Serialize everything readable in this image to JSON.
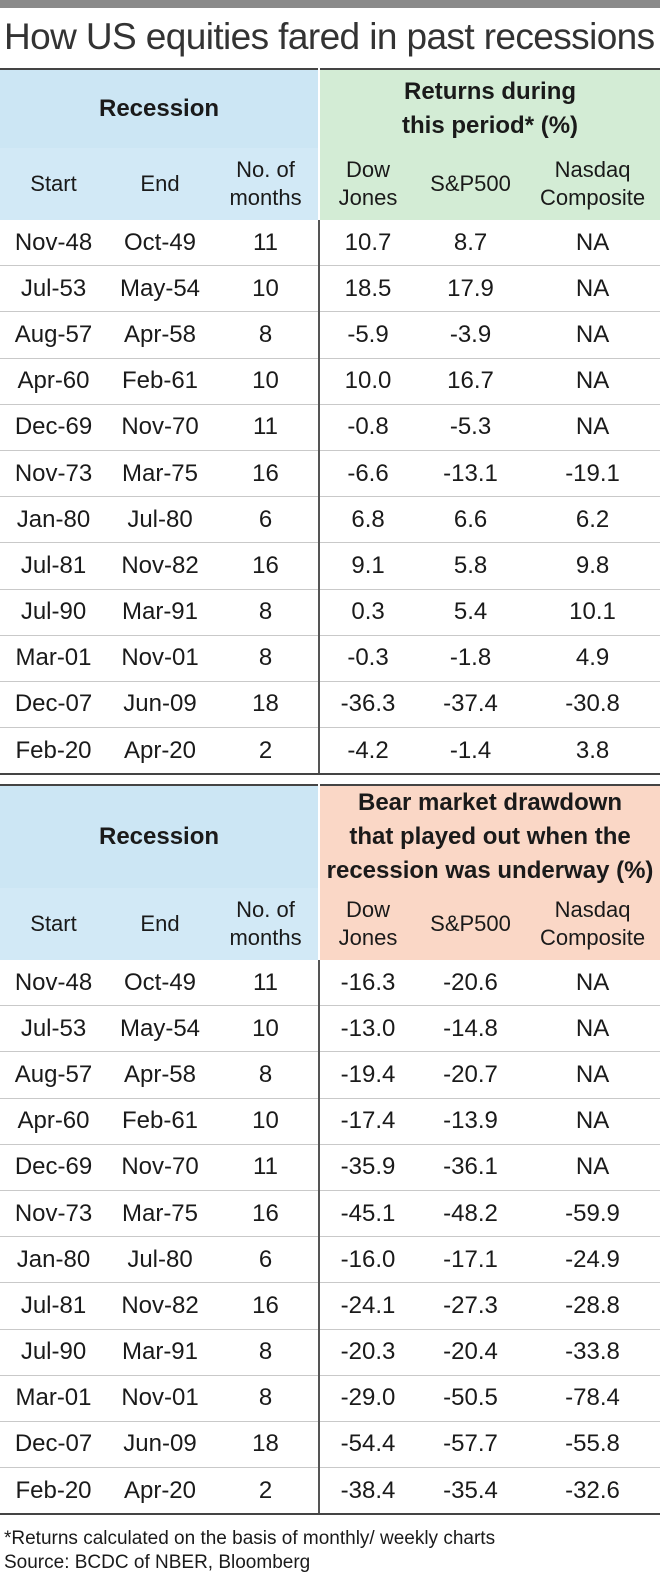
{
  "title": "How US equities fared in past recessions",
  "chart_data": [
    {
      "type": "table",
      "group_headers": [
        "Recession",
        "Returns during this period* (%)"
      ],
      "group_header_lines": [
        [
          "Recession"
        ],
        [
          "Returns during",
          "this period* (%)"
        ]
      ],
      "columns": [
        "Start",
        "End",
        "No. of months",
        "Dow Jones",
        "S&P500",
        "Nasdaq Composite"
      ],
      "column_lines": [
        [
          "Start"
        ],
        [
          "End"
        ],
        [
          "No. of",
          "months"
        ],
        [
          "Dow",
          "Jones"
        ],
        [
          "S&P500"
        ],
        [
          "Nasdaq",
          "Composite"
        ]
      ],
      "rows": [
        [
          "Nov-48",
          "Oct-49",
          "11",
          "10.7",
          "8.7",
          "NA"
        ],
        [
          "Jul-53",
          "May-54",
          "10",
          "18.5",
          "17.9",
          "NA"
        ],
        [
          "Aug-57",
          "Apr-58",
          "8",
          "-5.9",
          "-3.9",
          "NA"
        ],
        [
          "Apr-60",
          "Feb-61",
          "10",
          "10.0",
          "16.7",
          "NA"
        ],
        [
          "Dec-69",
          "Nov-70",
          "11",
          "-0.8",
          "-5.3",
          "NA"
        ],
        [
          "Nov-73",
          "Mar-75",
          "16",
          "-6.6",
          "-13.1",
          "-19.1"
        ],
        [
          "Jan-80",
          "Jul-80",
          "6",
          "6.8",
          "6.6",
          "6.2"
        ],
        [
          "Jul-81",
          "Nov-82",
          "16",
          "9.1",
          "5.8",
          "9.8"
        ],
        [
          "Jul-90",
          "Mar-91",
          "8",
          "0.3",
          "5.4",
          "10.1"
        ],
        [
          "Mar-01",
          "Nov-01",
          "8",
          "-0.3",
          "-1.8",
          "4.9"
        ],
        [
          "Dec-07",
          "Jun-09",
          "18",
          "-36.3",
          "-37.4",
          "-30.8"
        ],
        [
          "Feb-20",
          "Apr-20",
          "2",
          "-4.2",
          "-1.4",
          "3.8"
        ]
      ]
    },
    {
      "type": "table",
      "group_headers": [
        "Recession",
        "Bear market drawdown that played out when the recession was underway (%)"
      ],
      "group_header_lines": [
        [
          "Recession"
        ],
        [
          "Bear market drawdown",
          "that played out when the",
          "recession was underway (%)"
        ]
      ],
      "columns": [
        "Start",
        "End",
        "No. of months",
        "Dow Jones",
        "S&P500",
        "Nasdaq Composite"
      ],
      "column_lines": [
        [
          "Start"
        ],
        [
          "End"
        ],
        [
          "No. of",
          "months"
        ],
        [
          "Dow",
          "Jones"
        ],
        [
          "S&P500"
        ],
        [
          "Nasdaq",
          "Composite"
        ]
      ],
      "rows": [
        [
          "Nov-48",
          "Oct-49",
          "11",
          "-16.3",
          "-20.6",
          "NA"
        ],
        [
          "Jul-53",
          "May-54",
          "10",
          "-13.0",
          "-14.8",
          "NA"
        ],
        [
          "Aug-57",
          "Apr-58",
          "8",
          "-19.4",
          "-20.7",
          "NA"
        ],
        [
          "Apr-60",
          "Feb-61",
          "10",
          "-17.4",
          "-13.9",
          "NA"
        ],
        [
          "Dec-69",
          "Nov-70",
          "11",
          "-35.9",
          "-36.1",
          "NA"
        ],
        [
          "Nov-73",
          "Mar-75",
          "16",
          "-45.1",
          "-48.2",
          "-59.9"
        ],
        [
          "Jan-80",
          "Jul-80",
          "6",
          "-16.0",
          "-17.1",
          "-24.9"
        ],
        [
          "Jul-81",
          "Nov-82",
          "16",
          "-24.1",
          "-27.3",
          "-28.8"
        ],
        [
          "Jul-90",
          "Mar-91",
          "8",
          "-20.3",
          "-20.4",
          "-33.8"
        ],
        [
          "Mar-01",
          "Nov-01",
          "8",
          "-29.0",
          "-50.5",
          "-78.4"
        ],
        [
          "Dec-07",
          "Jun-09",
          "18",
          "-54.4",
          "-57.7",
          "-55.8"
        ],
        [
          "Feb-20",
          "Apr-20",
          "2",
          "-38.4",
          "-35.4",
          "-32.6"
        ]
      ]
    }
  ],
  "footnote": "*Returns calculated on the basis of monthly/ weekly charts",
  "source": "Source: BCDC of NBER, Bloomberg",
  "colors": {
    "recession_header": "#cce6f4",
    "returns_header": "#d3ecd5",
    "drawdown_header": "#fad7c6",
    "column_header": "#d2e9f6"
  }
}
